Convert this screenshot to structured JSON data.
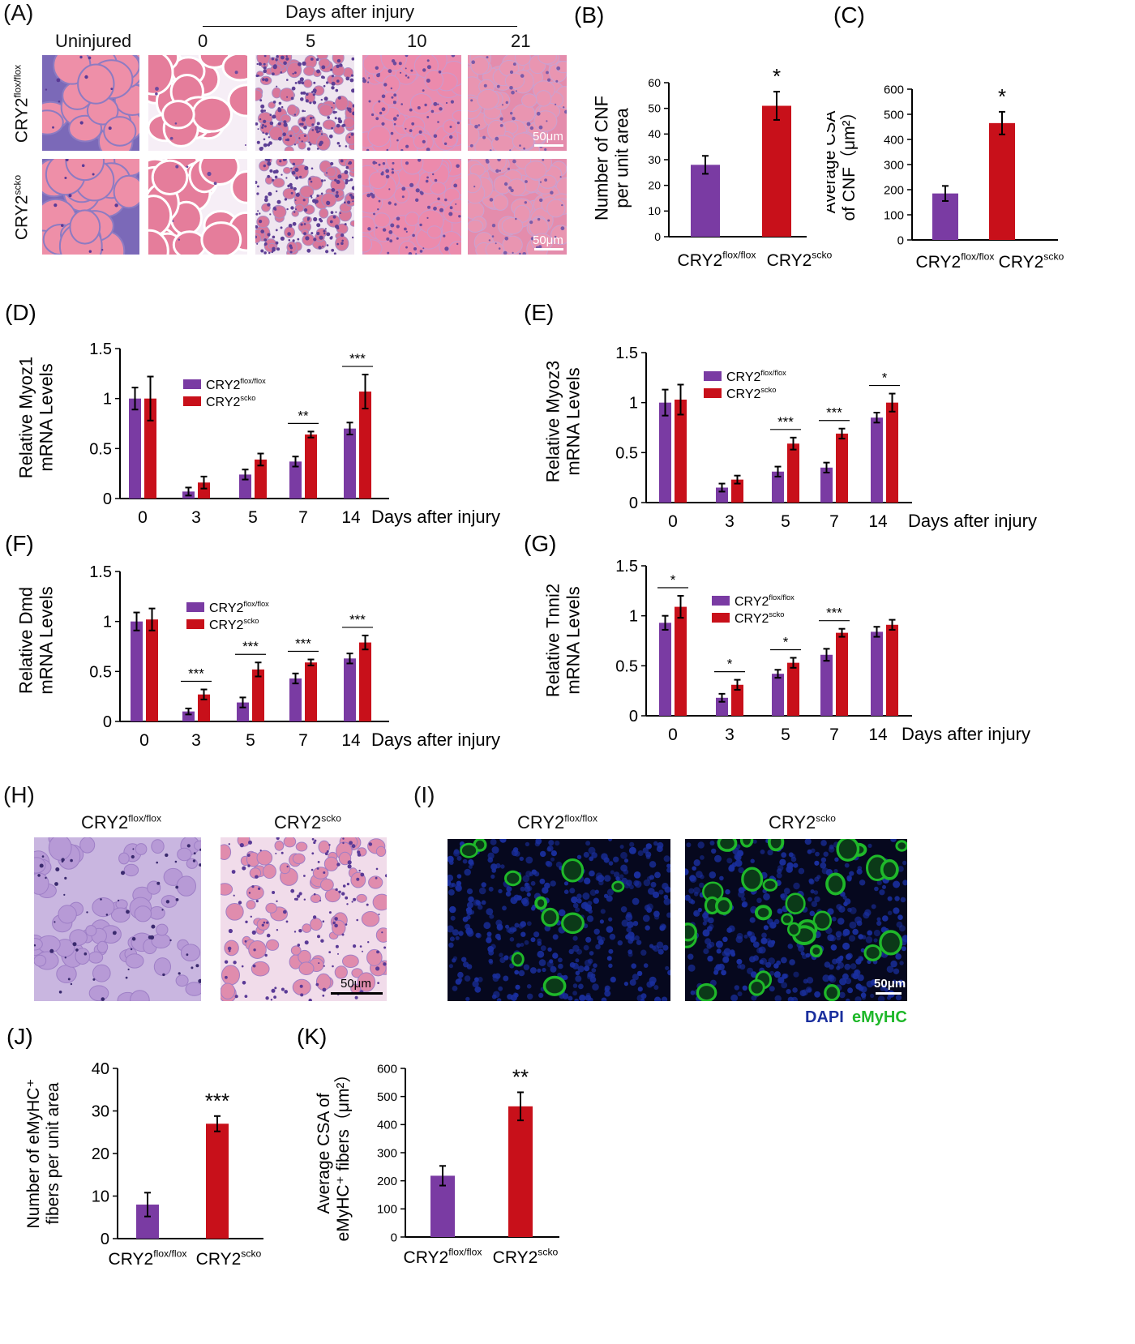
{
  "panelA": {
    "label": "(A)",
    "axis_title": "Days after injury",
    "columns": [
      "Uninjured",
      "0",
      "5",
      "10",
      "21"
    ],
    "rows": [
      {
        "base": "CRY2",
        "sup": "flox/flox"
      },
      {
        "base": "CRY2",
        "sup": "scko"
      }
    ],
    "scale": "50μm"
  },
  "panelH": {
    "label": "(H)",
    "groups": [
      {
        "base": "CRY2",
        "sup": "flox/flox"
      },
      {
        "base": "CRY2",
        "sup": "scko"
      }
    ],
    "scale": "50μm"
  },
  "panelI": {
    "label": "(I)",
    "groups": [
      {
        "base": "CRY2",
        "sup": "flox/flox"
      },
      {
        "base": "CRY2",
        "sup": "scko"
      }
    ],
    "scale": "50μm",
    "legend": [
      "DAPI",
      "eMyHC"
    ],
    "colors": {
      "dapi": "#1a2f9e",
      "emyhc": "#1fb82a"
    }
  },
  "colors": {
    "purple": "#7a3ba3",
    "red": "#c8101a",
    "axis": "#000000"
  },
  "groups": [
    {
      "base": "CRY2",
      "sup": "flox/flox"
    },
    {
      "base": "CRY2",
      "sup": "scko"
    }
  ],
  "chart_data": [
    {
      "id": "B",
      "label": "(B)",
      "type": "bar",
      "ylabel_lines": [
        "Number of CNF",
        "per unit area"
      ],
      "ylim": [
        0,
        60
      ],
      "yticks": [
        "0",
        "10",
        "20",
        "30",
        "40",
        "50",
        "60"
      ],
      "values": [
        28,
        51
      ],
      "errors": [
        3.5,
        5.5
      ],
      "sig": [
        null,
        "*"
      ]
    },
    {
      "id": "C",
      "label": "(C)",
      "type": "bar",
      "ylabel_lines": [
        "Average CSA",
        "of CNF（μm²）"
      ],
      "ylim": [
        0,
        600
      ],
      "yticks": [
        "0",
        "100",
        "200",
        "300",
        "400",
        "500",
        "600"
      ],
      "values": [
        185,
        465
      ],
      "errors": [
        30,
        45
      ],
      "sig": [
        null,
        "*"
      ]
    },
    {
      "id": "D",
      "label": "(D)",
      "type": "bar",
      "ylabel_lines": [
        "Relative Myoz1",
        "mRNA  Levels"
      ],
      "ylim": [
        0,
        1.5
      ],
      "yticks": [
        "0",
        "0.5",
        "1",
        "1.5"
      ],
      "categories": [
        "0",
        "3",
        "5",
        "7",
        "14"
      ],
      "xlabel": "Days after injury",
      "series": [
        {
          "values": [
            1.0,
            0.07,
            0.24,
            0.37,
            0.7
          ],
          "errors": [
            0.11,
            0.04,
            0.05,
            0.05,
            0.06
          ]
        },
        {
          "values": [
            1.0,
            0.16,
            0.39,
            0.64,
            1.07
          ],
          "errors": [
            0.22,
            0.06,
            0.06,
            0.03,
            0.17
          ]
        }
      ],
      "sig": [
        null,
        null,
        null,
        "**",
        "***"
      ]
    },
    {
      "id": "E",
      "label": "(E)",
      "type": "bar",
      "ylabel_lines": [
        "Relative Myoz3",
        "mRNA  Levels"
      ],
      "ylim": [
        0,
        1.5
      ],
      "yticks": [
        "0",
        "0.5",
        "1",
        "1.5"
      ],
      "categories": [
        "0",
        "3",
        "5",
        "7",
        "14"
      ],
      "xlabel": "Days after injury",
      "series": [
        {
          "values": [
            1.0,
            0.15,
            0.31,
            0.35,
            0.85
          ],
          "errors": [
            0.13,
            0.04,
            0.05,
            0.05,
            0.05
          ]
        },
        {
          "values": [
            1.03,
            0.23,
            0.59,
            0.69,
            1.0
          ],
          "errors": [
            0.15,
            0.04,
            0.06,
            0.05,
            0.09
          ]
        }
      ],
      "sig": [
        null,
        null,
        "***",
        "***",
        "*"
      ]
    },
    {
      "id": "F",
      "label": "(F)",
      "type": "bar",
      "ylabel_lines": [
        "Relative Dmd",
        "mRNA  Levels"
      ],
      "ylim": [
        0,
        1.5
      ],
      "yticks": [
        "0",
        "0.5",
        "1",
        "1.5"
      ],
      "categories": [
        "0",
        "3",
        "5",
        "7",
        "14"
      ],
      "xlabel": "Days after injury",
      "series": [
        {
          "values": [
            1.0,
            0.1,
            0.19,
            0.43,
            0.63
          ],
          "errors": [
            0.09,
            0.03,
            0.05,
            0.05,
            0.05
          ]
        },
        {
          "values": [
            1.02,
            0.27,
            0.52,
            0.59,
            0.79
          ],
          "errors": [
            0.11,
            0.05,
            0.07,
            0.03,
            0.07
          ]
        }
      ],
      "sig": [
        null,
        "***",
        "***",
        "***",
        "***"
      ]
    },
    {
      "id": "G",
      "label": "(G)",
      "type": "bar",
      "ylabel_lines": [
        "Relative Tnni2",
        "mRNA  Levels"
      ],
      "ylim": [
        0,
        1.5
      ],
      "yticks": [
        "0",
        "0.5",
        "1",
        "1.5"
      ],
      "categories": [
        "0",
        "3",
        "5",
        "7",
        "14"
      ],
      "xlabel": "Days after injury",
      "series": [
        {
          "values": [
            0.93,
            0.18,
            0.42,
            0.61,
            0.84
          ],
          "errors": [
            0.07,
            0.04,
            0.04,
            0.06,
            0.05
          ]
        },
        {
          "values": [
            1.09,
            0.31,
            0.53,
            0.83,
            0.91
          ],
          "errors": [
            0.11,
            0.05,
            0.05,
            0.04,
            0.05
          ]
        }
      ],
      "sig": [
        "*",
        "*",
        "*",
        "***",
        null
      ]
    },
    {
      "id": "J",
      "label": "(J)",
      "type": "bar",
      "ylabel_lines": [
        "Number of eMyHC⁺",
        "fibers per unit area"
      ],
      "ylim": [
        0,
        40
      ],
      "yticks": [
        "0",
        "10",
        "20",
        "30",
        "40"
      ],
      "values": [
        8,
        27
      ],
      "errors": [
        2.8,
        1.8
      ],
      "sig": [
        null,
        "***"
      ]
    },
    {
      "id": "K",
      "label": "(K)",
      "type": "bar",
      "ylabel_lines": [
        "Average  CSA of",
        "eMyHC⁺ fibers（μm²）"
      ],
      "ylim": [
        0,
        600
      ],
      "yticks": [
        "0",
        "100",
        "200",
        "300",
        "400",
        "500",
        "600"
      ],
      "values": [
        218,
        465
      ],
      "errors": [
        35,
        50
      ],
      "sig": [
        null,
        "**"
      ]
    }
  ]
}
